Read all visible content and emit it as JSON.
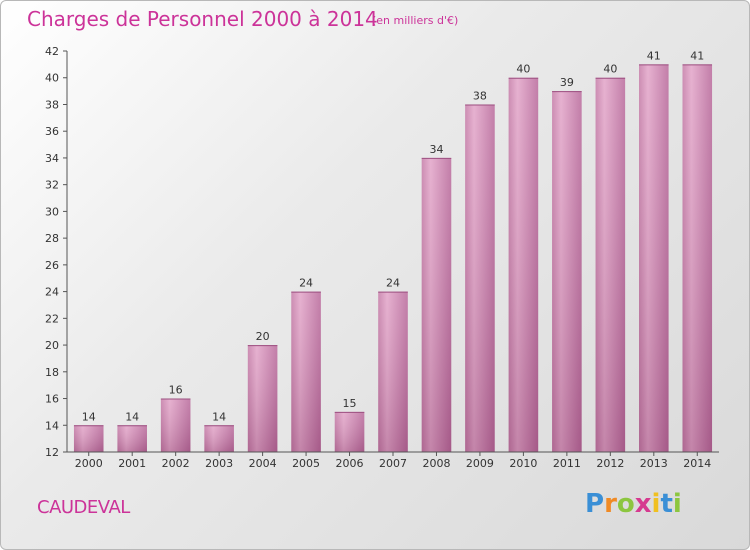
{
  "chart_data": {
    "type": "bar",
    "title": "Charges de Personnel 2000 à 2014",
    "subtitle": "(en milliers d'€)",
    "xlabel": "",
    "ylabel": "",
    "categories": [
      "2000",
      "2001",
      "2002",
      "2003",
      "2004",
      "2005",
      "2006",
      "2007",
      "2008",
      "2009",
      "2010",
      "2011",
      "2012",
      "2013",
      "2014"
    ],
    "values": [
      14,
      14,
      16,
      14,
      20,
      24,
      15,
      24,
      34,
      38,
      40,
      39,
      40,
      41,
      41
    ],
    "ylim": [
      12,
      42
    ],
    "yticks": [
      12,
      14,
      16,
      18,
      20,
      22,
      24,
      26,
      28,
      30,
      32,
      34,
      36,
      38,
      40,
      42
    ],
    "grid": false,
    "bar_color": "#cc66a3"
  },
  "place_name": "CAUDEVAL",
  "logo": {
    "letters": [
      "P",
      "r",
      "o",
      "x",
      "i",
      "t",
      "i"
    ],
    "colors": [
      "#3a8fd6",
      "#f08a24",
      "#8cc63f",
      "#d63a8f",
      "#f0c020",
      "#3a8fd6",
      "#8cc63f"
    ]
  }
}
